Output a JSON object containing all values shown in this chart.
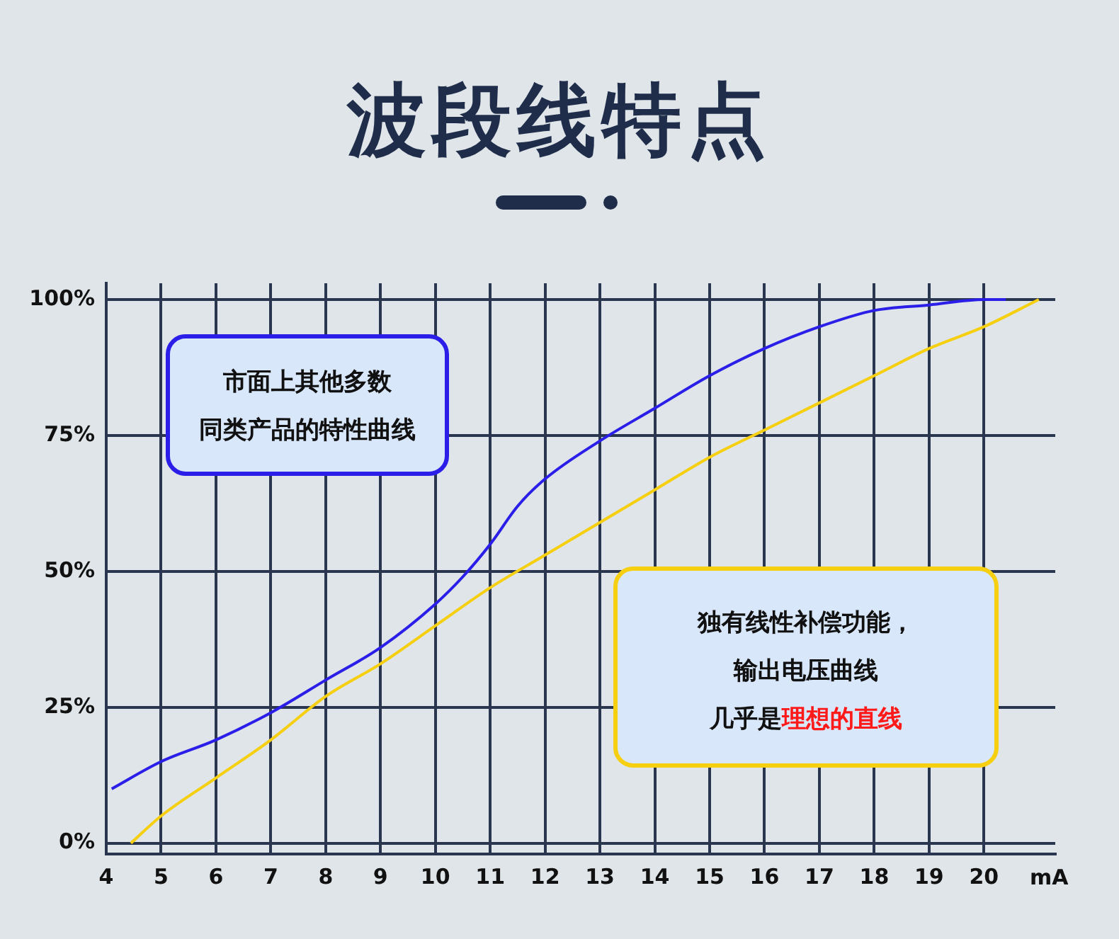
{
  "chart_data": {
    "type": "line",
    "title": "波段线特点",
    "xlabel": "mA",
    "xlim": [
      4,
      21.3
    ],
    "xticks": [
      4,
      5,
      6,
      7,
      8,
      9,
      10,
      11,
      12,
      13,
      14,
      15,
      16,
      17,
      18,
      19,
      20
    ],
    "ylim": [
      -2,
      103
    ],
    "yticks": [
      {
        "value": 0,
        "label": "0%"
      },
      {
        "value": 25,
        "label": "25%"
      },
      {
        "value": 50,
        "label": "50%"
      },
      {
        "value": 75,
        "label": "75%"
      },
      {
        "value": 100,
        "label": "100%"
      }
    ],
    "grid": true,
    "legend": false,
    "marker": "none",
    "line_style": "solid",
    "series": [
      {
        "color": "#2a1ee8",
        "x": [
          4.1,
          5,
          6,
          7,
          8,
          9,
          10,
          10.5,
          11,
          11.5,
          12,
          13,
          14,
          15,
          16,
          17,
          18,
          19,
          20,
          20.4
        ],
        "values": [
          10,
          15,
          19,
          24,
          30,
          36,
          44,
          49,
          55,
          62,
          67,
          74,
          80,
          86,
          91,
          95,
          98,
          99,
          100,
          100
        ]
      },
      {
        "color": "#f5cf10",
        "x": [
          4.45,
          5,
          6,
          7,
          8,
          9,
          10,
          11,
          12,
          13,
          14,
          15,
          16,
          17,
          18,
          19,
          20,
          21
        ],
        "values": [
          0,
          5,
          12,
          19,
          27,
          33,
          40,
          47,
          53,
          59,
          65,
          71,
          76,
          81,
          86,
          91,
          95,
          100
        ]
      }
    ],
    "annotations": [
      "市面上其他多数",
      "同类产品的特性曲线",
      "独有线性补偿功能，",
      "输出电压曲线",
      "几乎是",
      "理想的直线"
    ]
  }
}
